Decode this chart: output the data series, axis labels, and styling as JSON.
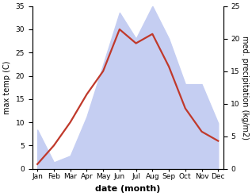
{
  "months": [
    "Jan",
    "Feb",
    "Mar",
    "Apr",
    "May",
    "Jun",
    "Jul",
    "Aug",
    "Sep",
    "Oct",
    "Nov",
    "Dec"
  ],
  "month_positions": [
    0,
    1,
    2,
    3,
    4,
    5,
    6,
    7,
    8,
    9,
    10,
    11
  ],
  "temperature": [
    1,
    5,
    10,
    16,
    21,
    30,
    27,
    29,
    22,
    13,
    8,
    6
  ],
  "precipitation": [
    6,
    1,
    2,
    8,
    16,
    24,
    20,
    25,
    20,
    13,
    13,
    7
  ],
  "temp_color": "#c0392b",
  "precip_fill_color": "#c5cef2",
  "temp_ylim": [
    0,
    35
  ],
  "precip_ylim": [
    0,
    25
  ],
  "temp_yticks": [
    0,
    5,
    10,
    15,
    20,
    25,
    30,
    35
  ],
  "precip_yticks": [
    0,
    5,
    10,
    15,
    20,
    25
  ],
  "ylabel_left": "max temp (C)",
  "ylabel_right": "med. precipitation (kg/m2)",
  "xlabel": "date (month)",
  "bg_color": "#ffffff",
  "line_width": 1.6,
  "temp_fontsize": 7,
  "precip_fontsize": 7,
  "xlabel_fontsize": 8,
  "tick_fontsize": 6.5
}
